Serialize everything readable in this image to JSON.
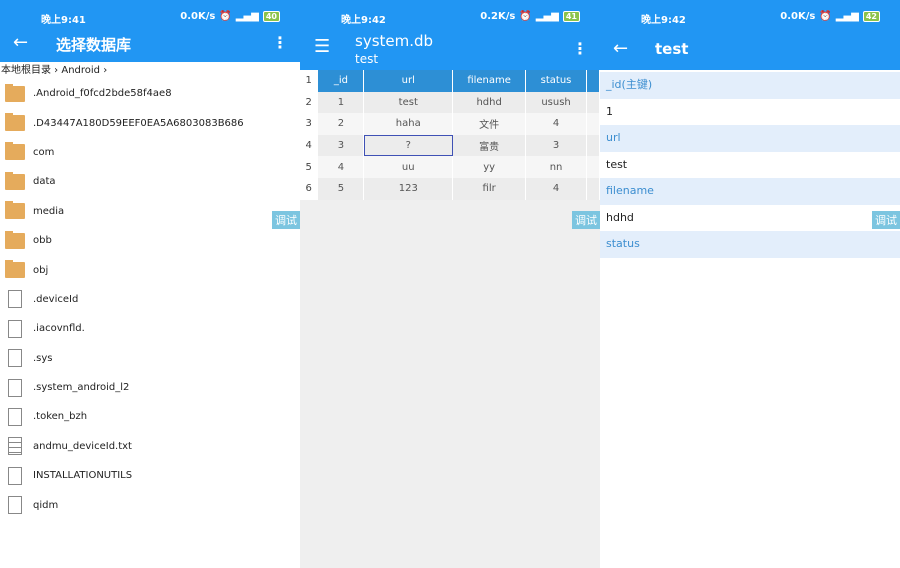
{
  "colors": {
    "appbar": "#2196f3",
    "header": "#2d8fd5",
    "label_bg": "#e3eefb",
    "folder": "#e5ab5c"
  },
  "debug_label": "调试",
  "left": {
    "status": {
      "time": "晚上9:41",
      "speed": "0.0K/s",
      "battery": "40"
    },
    "title": "选择数据库",
    "breadcrumb": [
      "本地根目录",
      "Android"
    ],
    "items": [
      {
        "type": "folder",
        "name": ".Android_f0fcd2bde58f4ae8"
      },
      {
        "type": "folder",
        "name": ".D43447A180D59EEF0EA5A6803083B686"
      },
      {
        "type": "folder",
        "name": "com"
      },
      {
        "type": "folder",
        "name": "data"
      },
      {
        "type": "folder",
        "name": "media"
      },
      {
        "type": "folder",
        "name": "obb"
      },
      {
        "type": "folder",
        "name": "obj"
      },
      {
        "type": "file",
        "name": ".deviceId"
      },
      {
        "type": "file",
        "name": ".iacovnfld."
      },
      {
        "type": "file",
        "name": ".sys"
      },
      {
        "type": "file",
        "name": ".system_android_l2"
      },
      {
        "type": "file",
        "name": ".token_bzh"
      },
      {
        "type": "text",
        "name": "andmu_deviceId.txt"
      },
      {
        "type": "file",
        "name": "INSTALLATIONUTILS"
      },
      {
        "type": "file",
        "name": "qidm"
      }
    ]
  },
  "middle": {
    "status": {
      "time": "晚上9:42",
      "speed": "0.2K/s",
      "battery": "41"
    },
    "title": "system.db",
    "subtitle": "test",
    "columns": [
      "_id",
      "url",
      "filename",
      "status"
    ],
    "rows": [
      [
        "1",
        "test",
        "hdhd",
        "usush"
      ],
      [
        "2",
        "haha",
        "文件",
        "4"
      ],
      [
        "3",
        "?",
        "富贵",
        "3"
      ],
      [
        "4",
        "uu",
        "yy",
        "nn"
      ],
      [
        "5",
        "123",
        "filr",
        "4"
      ]
    ],
    "row_numbers": [
      "1",
      "2",
      "3",
      "4",
      "5",
      "6"
    ],
    "selected_cell": {
      "row": 3,
      "column": "url"
    }
  },
  "right": {
    "status": {
      "time": "晚上9:42",
      "speed": "0.0K/s",
      "battery": "42"
    },
    "title": "test",
    "fields": [
      {
        "label": "_id(主键)",
        "value": "1"
      },
      {
        "label": "url",
        "value": "test"
      },
      {
        "label": "filename",
        "value": "hdhd"
      },
      {
        "label": "status",
        "value": ""
      }
    ]
  }
}
